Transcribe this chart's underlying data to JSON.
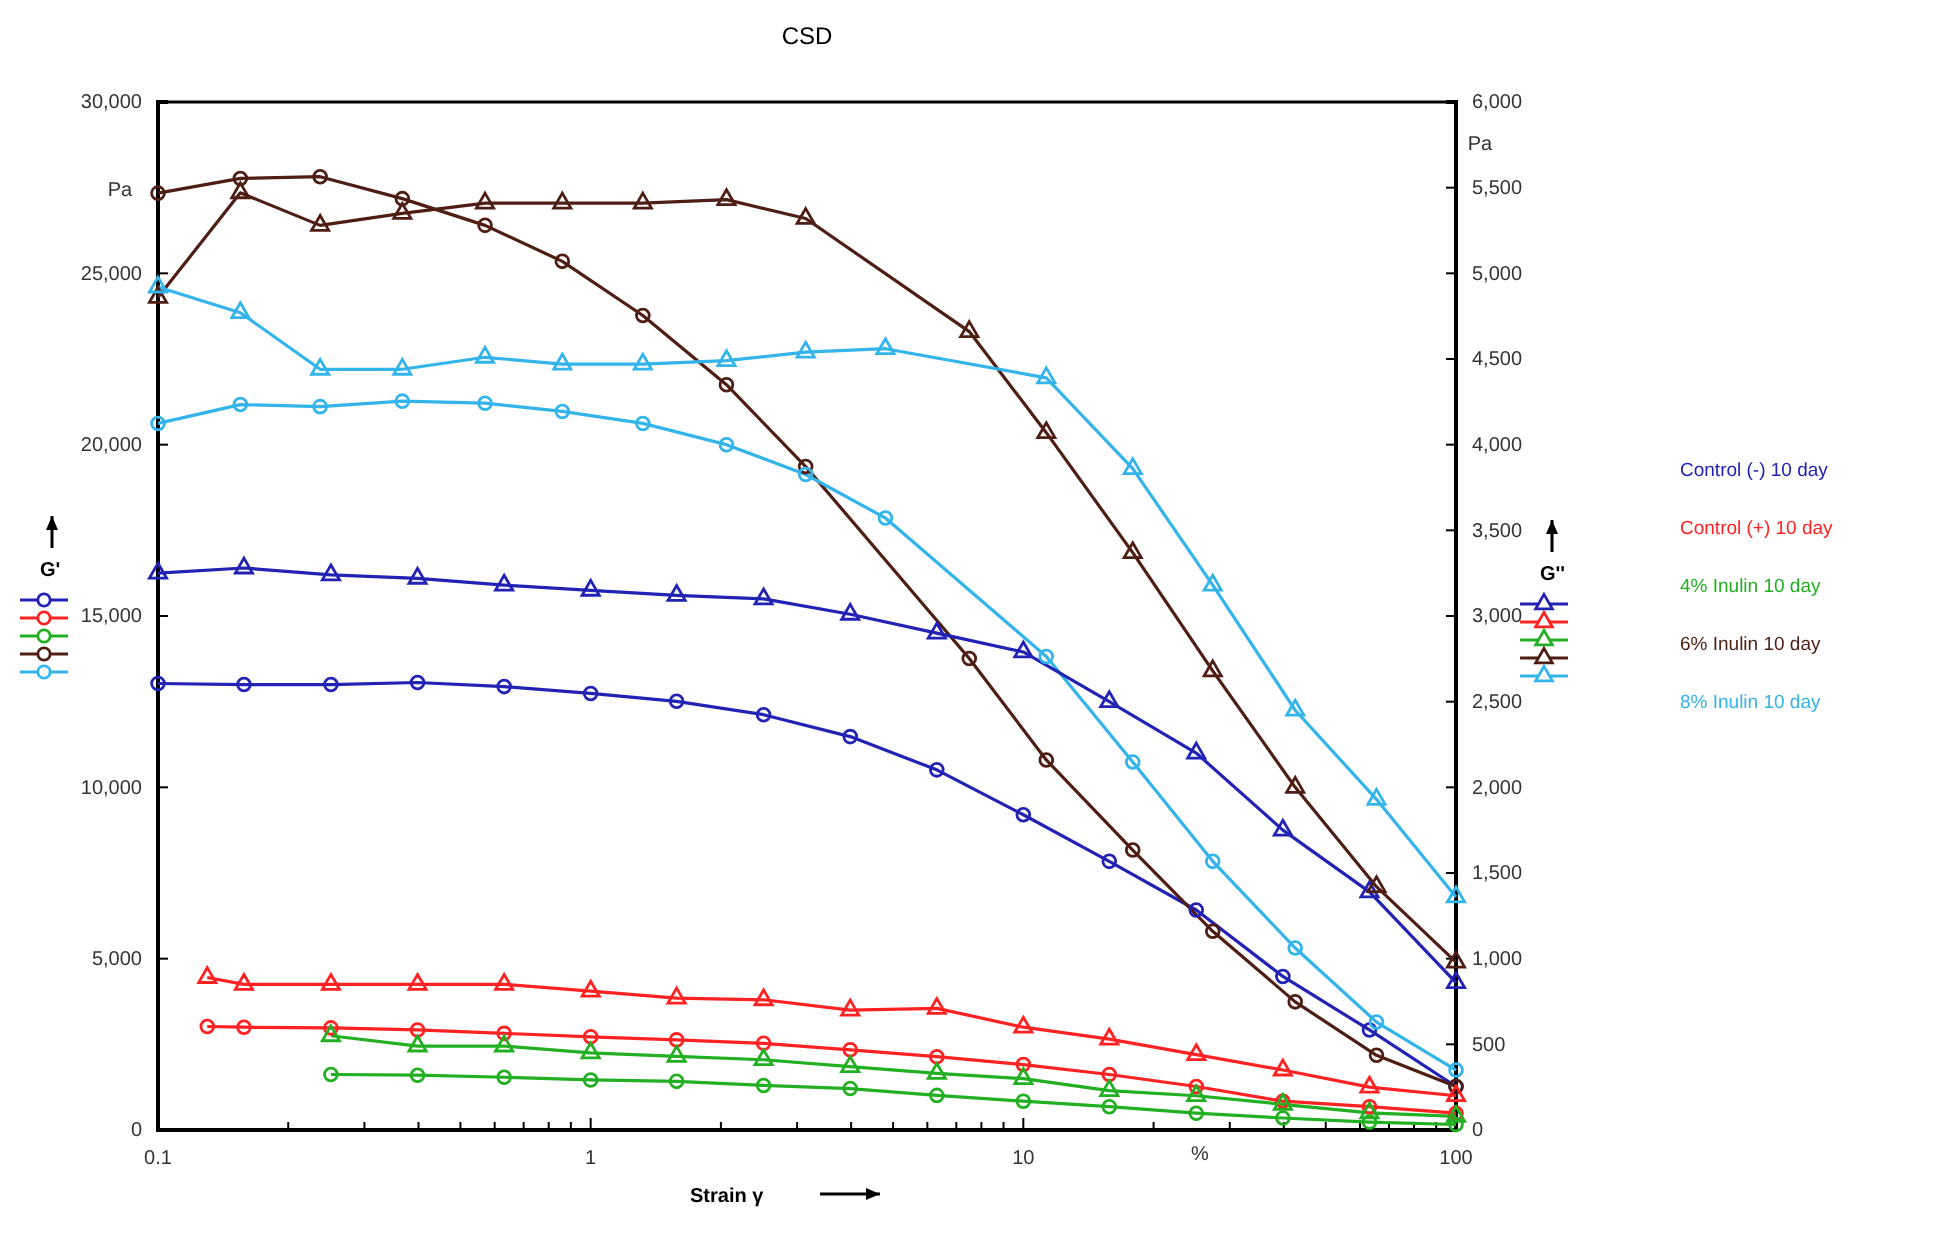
{
  "chart_data": {
    "type": "line",
    "title": "CSD",
    "xlabel": "Strain γ",
    "ylabel": "G'",
    "y2label": "G''",
    "annotations": [
      "Pa",
      "Pa",
      "%"
    ],
    "log": "x",
    "grid": false,
    "legend": "right",
    "xlim": [
      0.1,
      100
    ],
    "xticks": [
      {
        "value": 0.1,
        "label": "0.1"
      },
      {
        "value": 0.2,
        "label": null
      },
      {
        "value": 0.3,
        "label": null
      },
      {
        "value": 0.4,
        "label": null
      },
      {
        "value": 0.5,
        "label": null
      },
      {
        "value": 0.6,
        "label": null
      },
      {
        "value": 0.7,
        "label": null
      },
      {
        "value": 0.8,
        "label": null
      },
      {
        "value": 0.9,
        "label": null
      },
      1,
      {
        "value": 2,
        "label": null
      },
      {
        "value": 3,
        "label": null
      },
      {
        "value": 4,
        "label": null
      },
      {
        "value": 5,
        "label": null
      },
      {
        "value": 6,
        "label": null
      },
      {
        "value": 7,
        "label": null
      },
      {
        "value": 8,
        "label": null
      },
      {
        "value": 9,
        "label": null
      },
      10,
      {
        "value": 20,
        "label": null
      },
      {
        "value": 30,
        "label": null
      },
      {
        "value": 40,
        "label": null
      },
      {
        "value": 50,
        "label": null
      },
      {
        "value": 60,
        "label": null
      },
      {
        "value": 70,
        "label": null
      },
      {
        "value": 80,
        "label": null
      },
      {
        "value": 90,
        "label": null
      },
      100
    ],
    "ylim": [
      0,
      30000
    ],
    "yticks": [
      0,
      {
        "value": 5000,
        "label": "5,000"
      },
      {
        "value": 10000,
        "label": "10,000"
      },
      {
        "value": 15000,
        "label": "15,000"
      },
      {
        "value": 20000,
        "label": "20,000"
      },
      {
        "value": 25000,
        "label": "25,000"
      },
      {
        "value": 30000,
        "label": "30,000"
      }
    ],
    "y2lim": [
      0,
      6000
    ],
    "y2ticks": [
      0,
      500,
      {
        "value": 1000,
        "label": "1,000"
      },
      {
        "value": 1500,
        "label": "1,500"
      },
      {
        "value": 2000,
        "label": "2,000"
      },
      {
        "value": 2500,
        "label": "2,500"
      },
      {
        "value": 3000,
        "label": "3,000"
      },
      {
        "value": 3500,
        "label": "3,500"
      },
      {
        "value": 4000,
        "label": "4,000"
      },
      {
        "value": 4500,
        "label": "4,500"
      },
      {
        "value": 5000,
        "label": "5,000"
      },
      {
        "value": 5500,
        "label": "5,500"
      },
      {
        "value": 6000,
        "label": "6,000"
      }
    ],
    "series": [
      {
        "name": "Control (-) 10 day",
        "color": "#2222b4",
        "marker": "circle",
        "x": [
          0.1,
          0.158,
          0.251,
          0.398,
          0.631,
          1,
          1.58,
          2.51,
          3.98,
          6.31,
          10,
          15.8,
          25.1,
          39.8,
          63.1,
          100
        ],
        "values": [
          13030,
          13000,
          13000,
          13060,
          12940,
          12740,
          12510,
          12120,
          11480,
          10510,
          9200,
          7840,
          6420,
          4480,
          2920,
          1270
        ]
      },
      {
        "name": "Control (+) 10 day",
        "color": "#ff2222",
        "marker": "circle",
        "x": [
          0.13,
          0.158,
          0.251,
          0.398,
          0.631,
          1,
          1.58,
          2.51,
          3.98,
          6.31,
          10,
          15.8,
          25.1,
          39.8,
          63.1,
          100
        ],
        "values": [
          3020,
          3000,
          2980,
          2920,
          2820,
          2720,
          2630,
          2530,
          2340,
          2140,
          1910,
          1620,
          1270,
          840,
          680,
          490
        ]
      },
      {
        "name": "4% Inulin 10 day",
        "color": "#22b022",
        "marker": "circle",
        "x": [
          0.251,
          0.398,
          0.631,
          1,
          1.58,
          2.51,
          3.98,
          6.31,
          10,
          15.8,
          25.1,
          39.8,
          63.1,
          100
        ],
        "values": [
          1620,
          1600,
          1540,
          1460,
          1420,
          1300,
          1210,
          1010,
          840,
          680,
          490,
          350,
          230,
          160
        ]
      },
      {
        "name": "6% Inulin 10 day",
        "color": "#4e1e14",
        "marker": "circle",
        "x": [
          0.1,
          0.155,
          0.237,
          0.367,
          0.57,
          0.86,
          1.32,
          2.06,
          3.14,
          7.5,
          11.3,
          17.9,
          27.4,
          42.5,
          65.5,
          100
        ],
        "values": [
          27340,
          27770,
          27820,
          27180,
          26400,
          25350,
          23770,
          21750,
          19360,
          13760,
          10800,
          8170,
          5800,
          3740,
          2180,
          1270
        ]
      },
      {
        "name": "8% Inulin 10 day",
        "color": "#33b4ea",
        "marker": "circle",
        "x": [
          0.1,
          0.155,
          0.237,
          0.367,
          0.57,
          0.86,
          1.32,
          2.06,
          3.14,
          4.8,
          11.3,
          17.9,
          27.4,
          42.5,
          65.5,
          100
        ],
        "values": [
          20620,
          21170,
          21110,
          21270,
          21210,
          20970,
          20620,
          20000,
          19130,
          17860,
          13820,
          10740,
          7840,
          5310,
          3150,
          1750
        ]
      },
      {
        "color": "#2222b4",
        "marker": "triangle",
        "axis": "y2",
        "x": [
          0.1,
          0.158,
          0.251,
          0.398,
          0.631,
          1,
          1.58,
          2.51,
          3.98,
          6.31,
          10,
          15.8,
          25.1,
          39.8,
          63.1,
          100
        ],
        "values": [
          3250,
          3280,
          3240,
          3220,
          3180,
          3150,
          3120,
          3100,
          3010,
          2900,
          2790,
          2500,
          2200,
          1750,
          1390,
          860
        ]
      },
      {
        "color": "#ff2222",
        "marker": "triangle",
        "axis": "y2",
        "x": [
          0.13,
          0.158,
          0.251,
          0.398,
          0.631,
          1,
          1.58,
          2.51,
          3.98,
          6.31,
          10,
          15.8,
          25.1,
          39.8,
          63.1,
          100
        ],
        "values": [
          890,
          850,
          850,
          850,
          850,
          810,
          770,
          760,
          700,
          710,
          600,
          530,
          440,
          350,
          250,
          200
        ]
      },
      {
        "color": "#22b022",
        "marker": "triangle",
        "axis": "y2",
        "x": [
          0.251,
          0.398,
          0.631,
          1,
          1.58,
          2.51,
          3.98,
          6.31,
          10,
          15.8,
          25.1,
          39.8,
          63.1,
          100
        ],
        "values": [
          550,
          490,
          490,
          450,
          430,
          410,
          370,
          330,
          300,
          230,
          200,
          150,
          100,
          80
        ]
      },
      {
        "color": "#4e1e14",
        "marker": "triangle",
        "axis": "y2",
        "x": [
          0.1,
          0.155,
          0.237,
          0.367,
          0.57,
          0.86,
          1.32,
          2.06,
          3.14,
          7.5,
          11.3,
          17.9,
          27.4,
          42.5,
          65.5,
          100
        ],
        "values": [
          4860,
          5470,
          5280,
          5350,
          5410,
          5410,
          5410,
          5430,
          5320,
          4660,
          4070,
          3370,
          2680,
          2000,
          1420,
          980
        ]
      },
      {
        "color": "#33b4ea",
        "marker": "triangle",
        "axis": "y2",
        "x": [
          0.1,
          0.155,
          0.237,
          0.367,
          0.57,
          0.86,
          1.32,
          2.06,
          3.14,
          4.8,
          11.3,
          17.9,
          27.4,
          42.5,
          65.5,
          100
        ],
        "values": [
          4920,
          4770,
          4440,
          4440,
          4510,
          4470,
          4470,
          4490,
          4540,
          4560,
          4390,
          3860,
          3180,
          2450,
          1930,
          1360
        ]
      }
    ]
  }
}
